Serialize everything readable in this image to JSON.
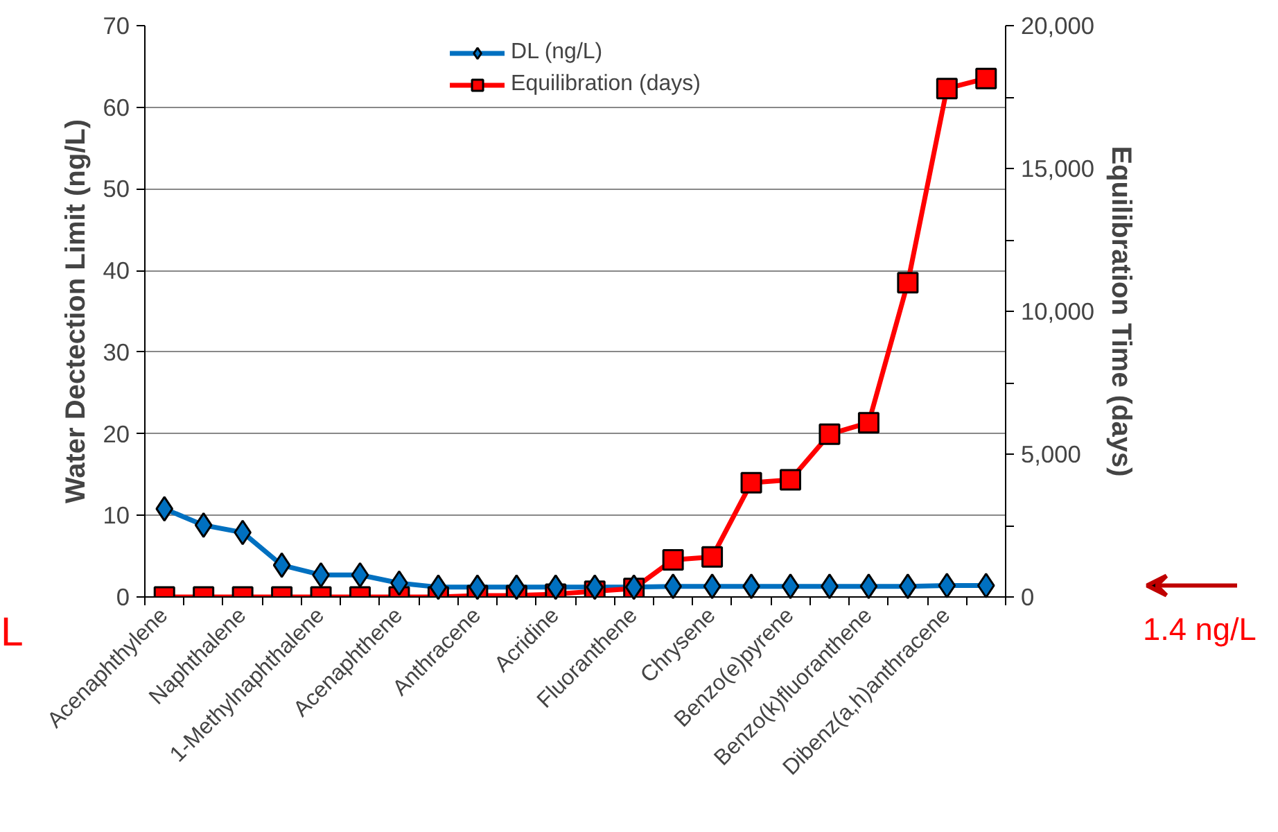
{
  "chart_data": {
    "type": "line",
    "xlabel": null,
    "ylabel": "Water Dectection Limit (ng/L)",
    "y2label": "Equilibration Time (days)",
    "categories": [
      "Acenaphthylene",
      null,
      "Naphthalene",
      null,
      "1-Methylnaphthalene",
      null,
      "Acenaphthene",
      null,
      "Anthracene",
      null,
      "Acridine",
      null,
      "Fluoranthene",
      null,
      "Chrysene",
      null,
      "Benzo(e)pyrene",
      null,
      "Benzo(k)fluoranthene",
      null,
      "Dibenz(a,h)anthracene",
      null
    ],
    "series": [
      {
        "name": "DL (ng/L)",
        "color": "#0070c0",
        "marker": "diamond",
        "values": [
          10.8,
          8.8,
          7.9,
          3.9,
          2.7,
          2.7,
          1.7,
          1.2,
          1.2,
          1.2,
          1.2,
          1.2,
          1.2,
          1.3,
          1.3,
          1.3,
          1.3,
          1.3,
          1.3,
          1.3,
          1.4,
          1.4
        ]
      },
      {
        "name": "Equilibration (days)",
        "color": "#ff0000",
        "marker": "square",
        "axis": "y2",
        "values": [
          0,
          0,
          0,
          0,
          0,
          0,
          0,
          0,
          50,
          50,
          100,
          200,
          300,
          1300,
          1400,
          4000,
          4100,
          5700,
          6100,
          11000,
          17800,
          18150
        ]
      }
    ],
    "ylim": [
      0,
      70
    ],
    "yticks": [
      0,
      10,
      20,
      30,
      40,
      50,
      60,
      70
    ],
    "y2lim": [
      0,
      20000
    ],
    "y2ticks": [
      0,
      {
        "value": 2500,
        "label": null
      },
      {
        "value": 5000,
        "label": "5,000"
      },
      {
        "value": 7500,
        "label": null
      },
      {
        "value": 10000,
        "label": "10,000"
      },
      {
        "value": 12500,
        "label": null
      },
      {
        "value": 15000,
        "label": "15,000"
      },
      {
        "value": 17500,
        "label": null
      },
      {
        "value": 20000,
        "label": "20,000"
      }
    ],
    "grid": "y",
    "legend": "top",
    "line_style": "solid",
    "annotations": [
      "1.4 ng/L",
      "L"
    ]
  }
}
